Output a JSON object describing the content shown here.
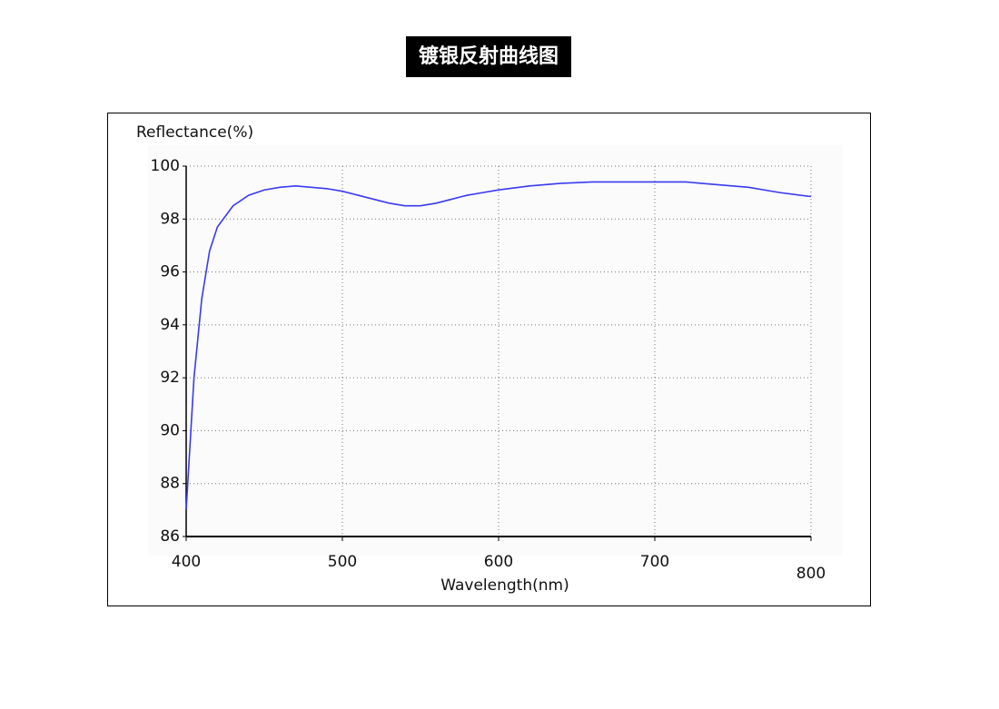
{
  "chart_data": {
    "type": "line",
    "title": "镀银反射曲线图",
    "y_label": "Reflectance(%)",
    "x_label": "Wavelength(nm)",
    "x": [
      400,
      402,
      405,
      410,
      415,
      420,
      430,
      440,
      450,
      460,
      470,
      480,
      490,
      500,
      510,
      520,
      530,
      540,
      550,
      560,
      570,
      580,
      590,
      600,
      620,
      640,
      660,
      680,
      700,
      720,
      740,
      760,
      780,
      800
    ],
    "series": [
      {
        "name": "Reflectance",
        "color": "#3a3af0",
        "values": [
          87,
          89,
          92,
          95,
          96.8,
          97.7,
          98.5,
          98.9,
          99.1,
          99.2,
          99.25,
          99.2,
          99.15,
          99.05,
          98.9,
          98.75,
          98.6,
          98.5,
          98.5,
          98.6,
          98.75,
          98.9,
          99.0,
          99.1,
          99.25,
          99.35,
          99.4,
          99.4,
          99.4,
          99.4,
          99.3,
          99.2,
          99.0,
          98.85
        ]
      }
    ],
    "xlim": [
      400,
      800
    ],
    "xticks": [
      400,
      500,
      600,
      700,
      800
    ],
    "ylim": [
      86,
      100
    ],
    "yticks": [
      86,
      88,
      90,
      92,
      94,
      96,
      98,
      100
    ],
    "grid": true
  }
}
